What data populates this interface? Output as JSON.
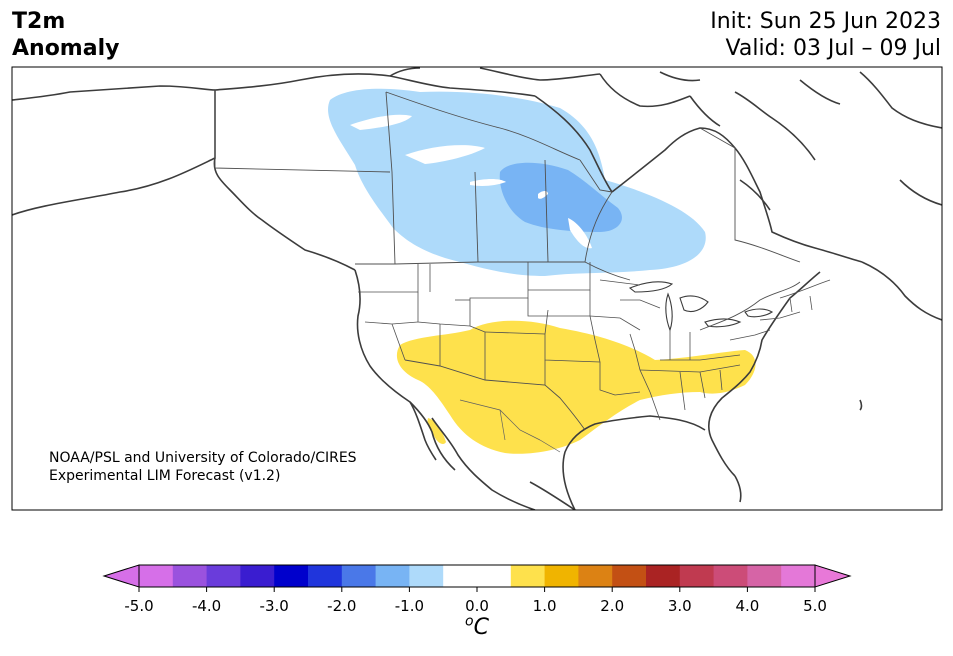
{
  "title": {
    "line1": "T2m",
    "line2": "Anomaly"
  },
  "dates": {
    "init": "Init: Sun 25 Jun 2023",
    "valid": "Valid: 03 Jul – 09 Jul"
  },
  "credit": {
    "line1": "NOAA/PSL and University of Colorado/CIRES",
    "line2": "Experimental LIM Forecast (v1.2)"
  },
  "colorbar": {
    "unit_sup": "o",
    "unit_main": "C",
    "ticks": [
      "-5.0",
      "-4.0",
      "-3.0",
      "-2.0",
      "-1.0",
      "0.0",
      "1.0",
      "2.0",
      "3.0",
      "4.0",
      "5.0"
    ],
    "colors": [
      "#d66fe8",
      "#9a52de",
      "#6a3cdb",
      "#3a1dd0",
      "#0000cc",
      "#2035dc",
      "#4a78e8",
      "#78b4f4",
      "#aedafa",
      "#ffffff",
      "#ffffff",
      "#fee14c",
      "#f0b400",
      "#dc8214",
      "#c35014",
      "#aa2323",
      "#c03a50",
      "#cc4c78",
      "#d664a6",
      "#e478d8"
    ],
    "extend_low": "#d66fe8",
    "extend_high": "#e878d8"
  },
  "anomaly_colors": {
    "cool_light": "#aedafa",
    "cool_medium": "#78b4f4",
    "warm_light": "#fee14c"
  }
}
